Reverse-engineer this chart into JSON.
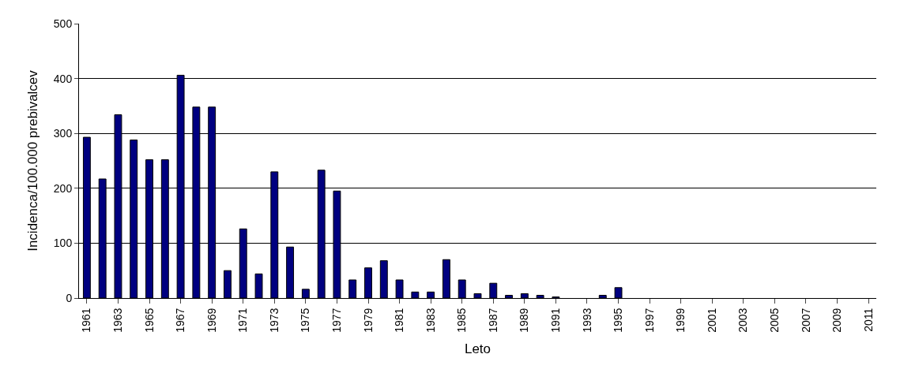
{
  "chart_data": {
    "type": "bar",
    "xlabel": "Leto",
    "ylabel": "Incidenca/100.000 prebivalcev",
    "categories": [
      "1961",
      null,
      "1963",
      null,
      "1965",
      null,
      "1967",
      null,
      "1969",
      null,
      "1971",
      null,
      "1973",
      null,
      "1975",
      null,
      "1977",
      null,
      "1979",
      null,
      "1981",
      null,
      "1983",
      null,
      "1985",
      null,
      "1987",
      null,
      "1989",
      null,
      "1991",
      null,
      "1993",
      null,
      "1995",
      null,
      "1997",
      null,
      "1999",
      null,
      "2001",
      null,
      "2003",
      null,
      "2005",
      null,
      "2007",
      null,
      "2009",
      null,
      "2011"
    ],
    "values": [
      293,
      217,
      334,
      288,
      252,
      252,
      406,
      348,
      348,
      50,
      126,
      44,
      230,
      93,
      16,
      233,
      195,
      33,
      55,
      68,
      33,
      11,
      11,
      70,
      33,
      8,
      27,
      5,
      8,
      5,
      2,
      null,
      null,
      5,
      19,
      null,
      null,
      null,
      null,
      null,
      null,
      null,
      null,
      null,
      null,
      null,
      null,
      null,
      null,
      null,
      null
    ],
    "color": "#000080",
    "ylim": [
      0,
      500
    ],
    "yticks": [
      0,
      100,
      200,
      300,
      400,
      500
    ],
    "grid": "y"
  }
}
